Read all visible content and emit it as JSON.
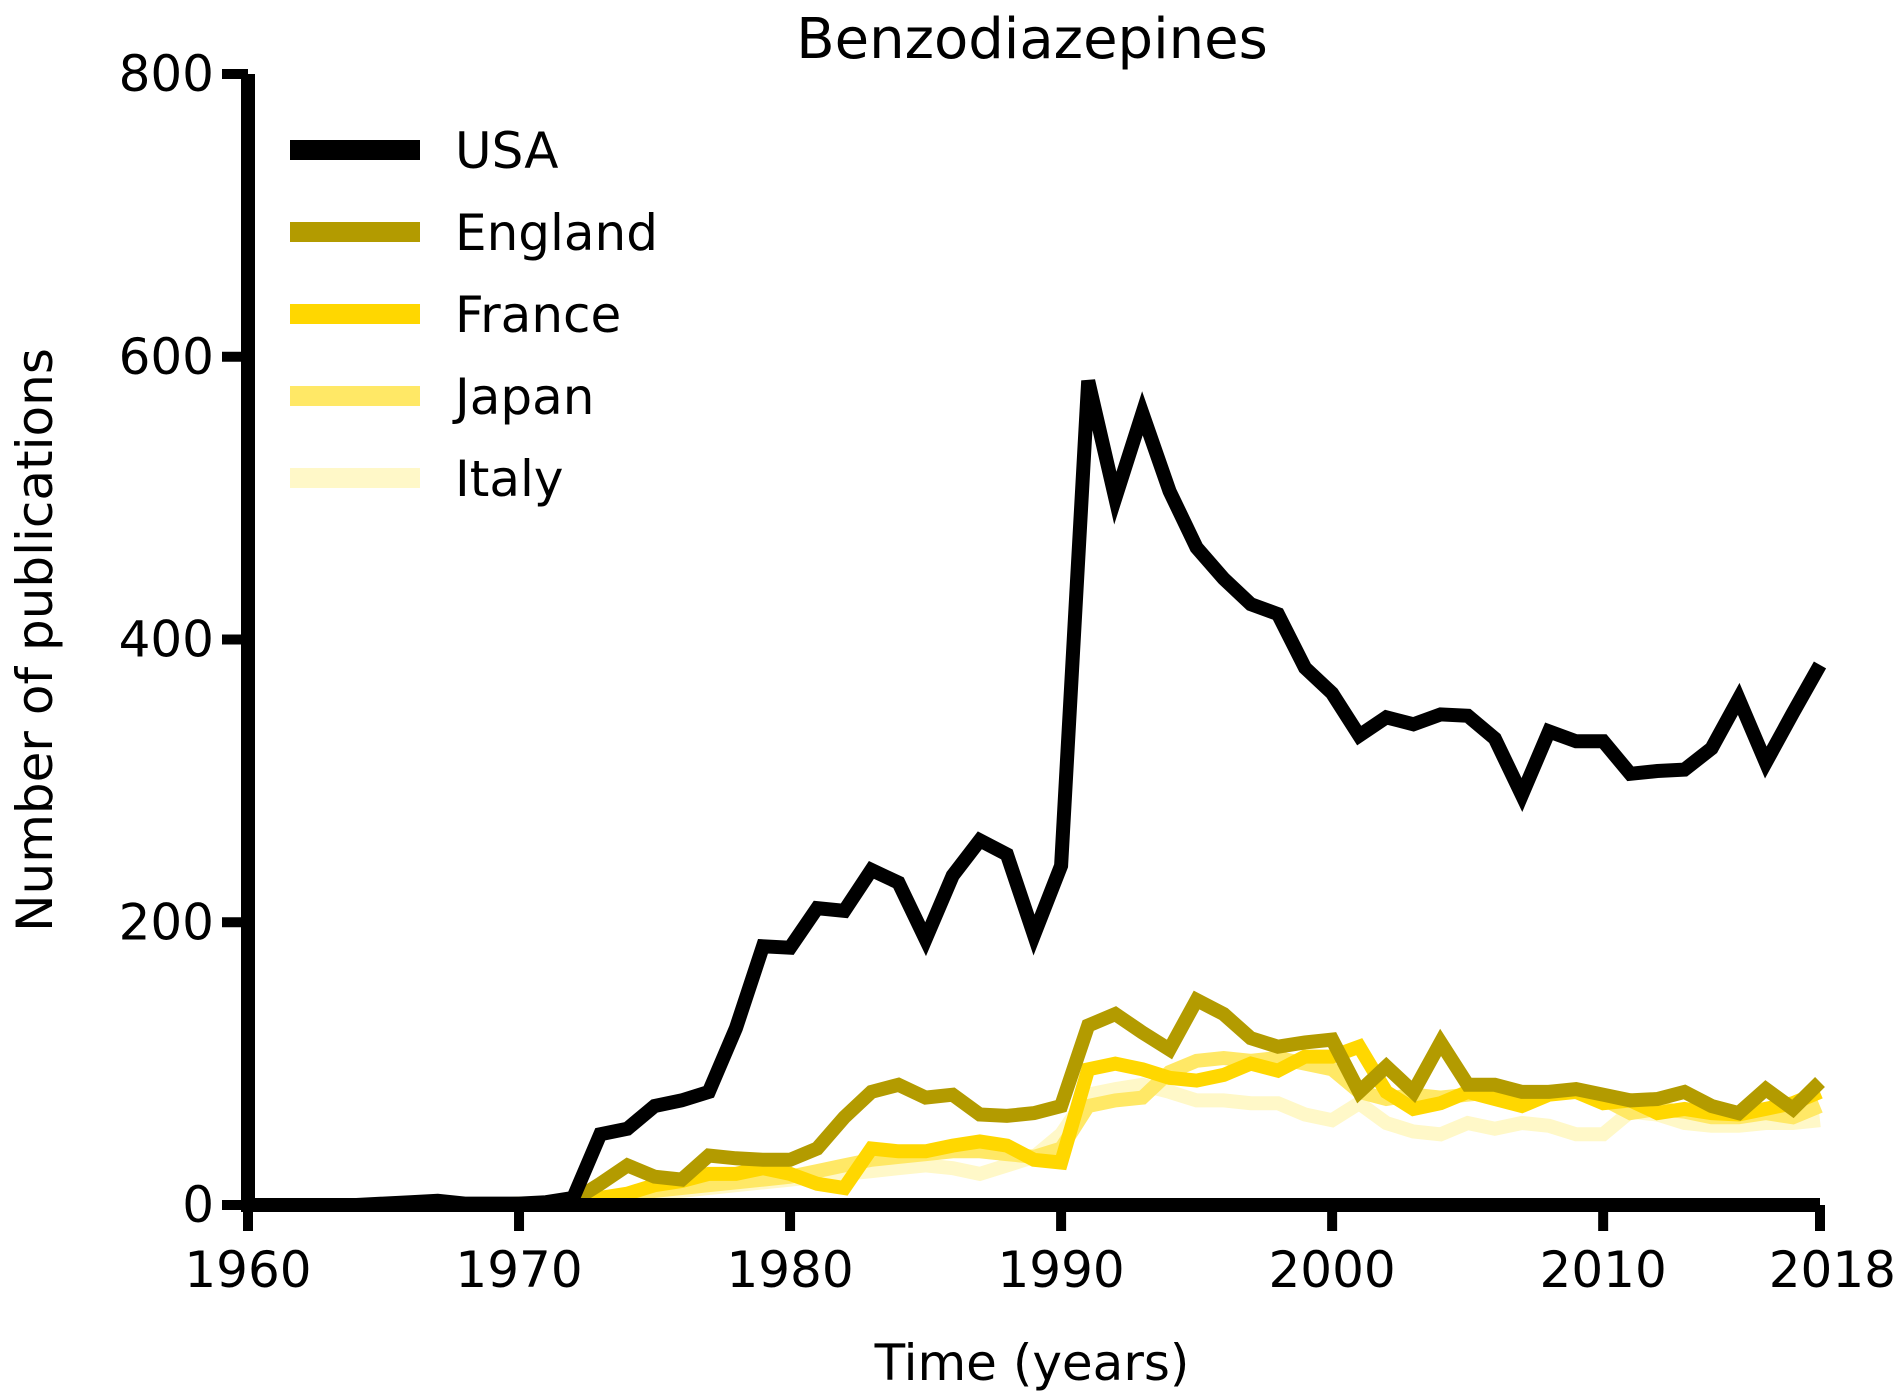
{
  "chart_data": {
    "type": "line",
    "title": "Benzodiazepines",
    "xlabel": "Time (years)",
    "ylabel": "Number of publications",
    "xlim": [
      1960,
      2018
    ],
    "ylim": [
      0,
      800
    ],
    "xticks": [
      1960,
      1970,
      1980,
      1990,
      2000,
      2010,
      2018
    ],
    "yticks": [
      0,
      200,
      400,
      600,
      800
    ],
    "grid": false,
    "legend": "top-left",
    "x": [
      1960,
      1961,
      1962,
      1963,
      1964,
      1965,
      1966,
      1967,
      1968,
      1969,
      1970,
      1971,
      1972,
      1973,
      1974,
      1975,
      1976,
      1977,
      1978,
      1979,
      1980,
      1981,
      1982,
      1983,
      1984,
      1985,
      1986,
      1987,
      1988,
      1989,
      1990,
      1991,
      1992,
      1993,
      1994,
      1995,
      1996,
      1997,
      1998,
      1999,
      2000,
      2001,
      2002,
      2003,
      2004,
      2005,
      2006,
      2007,
      2008,
      2009,
      2010,
      2011,
      2012,
      2013,
      2014,
      2015,
      2016,
      2017,
      2018
    ],
    "series": [
      {
        "name": "USA",
        "color": "#000000",
        "values": [
          0,
          0,
          0,
          0,
          0,
          1,
          2,
          3,
          1,
          1,
          1,
          2,
          5,
          50,
          54,
          70,
          74,
          80,
          125,
          183,
          182,
          210,
          208,
          237,
          228,
          188,
          233,
          258,
          248,
          191,
          240,
          583,
          500,
          560,
          505,
          465,
          443,
          425,
          418,
          380,
          362,
          332,
          345,
          340,
          347,
          346,
          330,
          290,
          335,
          328,
          328,
          305,
          307,
          308,
          323,
          358,
          313,
          348,
          382
        ]
      },
      {
        "name": "England",
        "color": "#b39b00",
        "values": [
          0,
          0,
          0,
          0,
          0,
          0,
          0,
          0,
          0,
          0,
          1,
          1,
          3,
          15,
          28,
          20,
          18,
          35,
          33,
          32,
          32,
          40,
          62,
          80,
          85,
          76,
          78,
          64,
          63,
          65,
          70,
          127,
          135,
          122,
          110,
          145,
          135,
          118,
          112,
          115,
          117,
          80,
          98,
          80,
          115,
          85,
          85,
          80,
          80,
          82,
          78,
          74,
          75,
          80,
          70,
          65,
          82,
          68,
          87
        ]
      },
      {
        "name": "France",
        "color": "#ffd700",
        "values": [
          0,
          0,
          0,
          0,
          0,
          0,
          0,
          0,
          0,
          0,
          0,
          0,
          2,
          5,
          8,
          14,
          17,
          22,
          22,
          26,
          22,
          15,
          12,
          40,
          38,
          38,
          42,
          45,
          42,
          32,
          30,
          96,
          100,
          96,
          90,
          88,
          92,
          100,
          95,
          105,
          105,
          112,
          80,
          68,
          72,
          80,
          75,
          70,
          78,
          80,
          72,
          74,
          65,
          68,
          65,
          64,
          68,
          72,
          80
        ]
      },
      {
        "name": "Japan",
        "color": "#ffe866",
        "values": [
          0,
          0,
          0,
          0,
          0,
          0,
          0,
          0,
          0,
          0,
          0,
          0,
          2,
          4,
          6,
          10,
          12,
          14,
          16,
          18,
          20,
          24,
          28,
          32,
          34,
          36,
          38,
          38,
          36,
          34,
          40,
          70,
          74,
          76,
          94,
          102,
          104,
          102,
          104,
          100,
          96,
          80,
          75,
          78,
          76,
          78,
          80,
          78,
          80,
          80,
          75,
          65,
          68,
          66,
          62,
          62,
          65,
          62,
          70
        ]
      },
      {
        "name": "Italy",
        "color": "#fff8c8",
        "values": [
          0,
          0,
          0,
          0,
          0,
          0,
          0,
          0,
          0,
          0,
          0,
          0,
          1,
          3,
          5,
          8,
          10,
          12,
          14,
          16,
          18,
          20,
          22,
          24,
          26,
          28,
          26,
          22,
          28,
          34,
          50,
          78,
          82,
          85,
          80,
          74,
          74,
          72,
          72,
          64,
          60,
          72,
          58,
          52,
          50,
          58,
          54,
          58,
          56,
          50,
          50,
          66,
          64,
          58,
          56,
          56,
          58,
          58,
          60
        ]
      }
    ]
  }
}
